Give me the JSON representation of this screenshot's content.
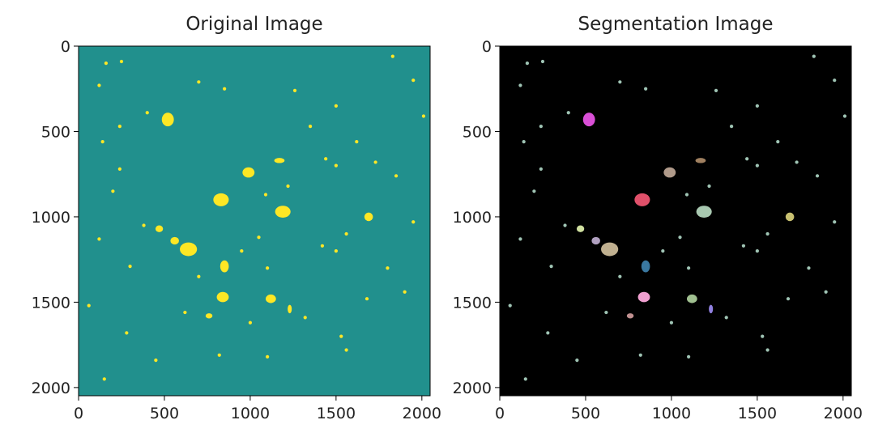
{
  "chart_data": [
    {
      "type": "image",
      "title": "Original Image",
      "xlim": [
        0,
        2048
      ],
      "ylim": [
        2048,
        0
      ],
      "xticks": [
        0,
        500,
        1000,
        1500,
        2000
      ],
      "yticks": [
        0,
        500,
        1000,
        1500,
        2000
      ],
      "background": "#21908d",
      "color": "#fde725"
    },
    {
      "type": "image",
      "title": "Segmentation Image",
      "xlim": [
        0,
        2048
      ],
      "ylim": [
        2048,
        0
      ],
      "xticks": [
        0,
        500,
        1000,
        1500,
        2000
      ],
      "yticks": [
        0,
        500,
        1000,
        1500,
        2000
      ],
      "background": "#000000",
      "color": "#9fc4b4"
    }
  ]
}
